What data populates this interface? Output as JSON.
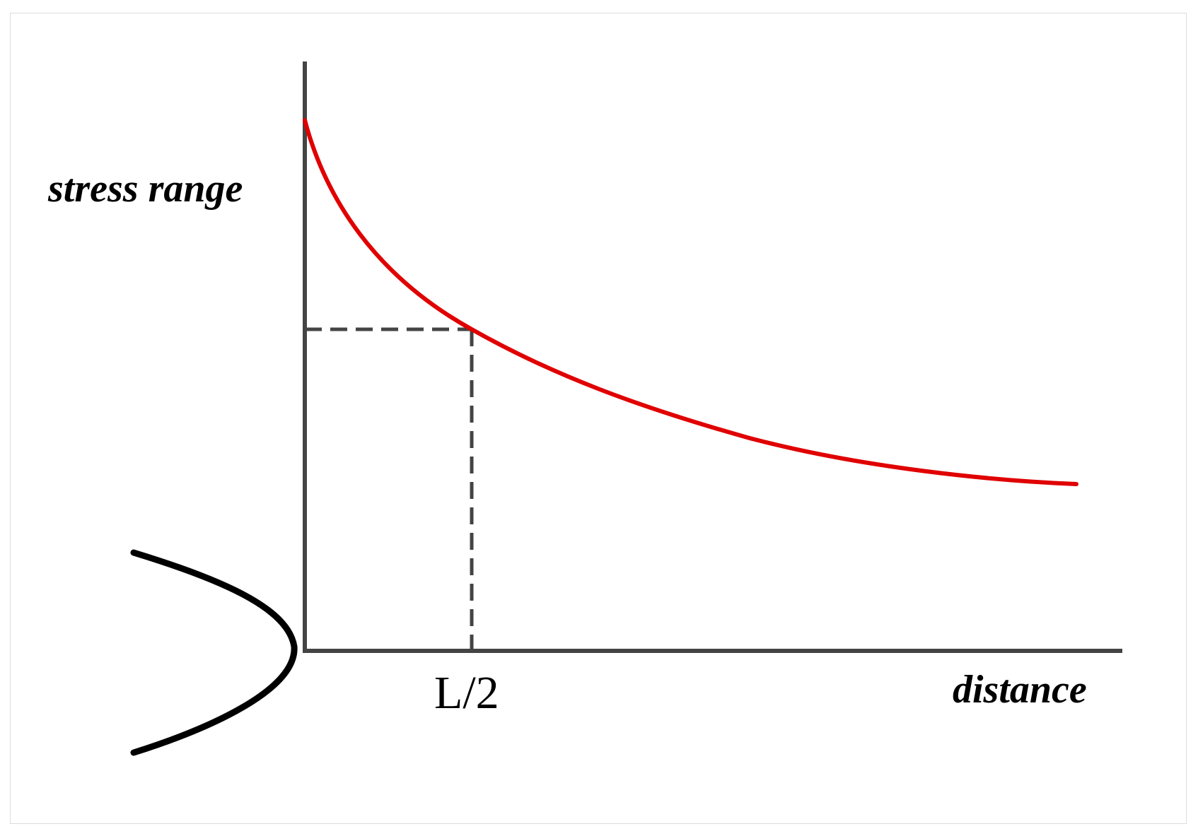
{
  "diagram": {
    "y_axis_label": "stress range",
    "x_axis_label": "distance",
    "marker_label": "L/2",
    "colors": {
      "curve": "#e00000",
      "axes": "#444444",
      "guide": "#444444",
      "notch": "#000000"
    }
  }
}
